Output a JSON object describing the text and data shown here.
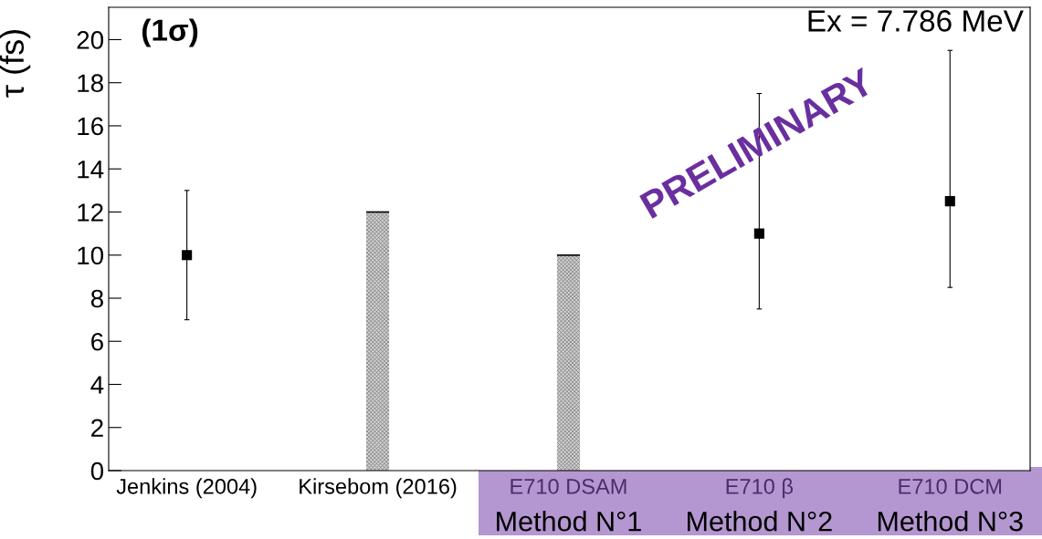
{
  "chart_data": {
    "type": "scatter",
    "categories": [
      "Jenkins (2004)",
      "Kirsebom (2016)",
      "E710 DSAM",
      "E710 β",
      "E710 DCM"
    ],
    "ylabel": "τ (fs)",
    "series": [
      {
        "color": "#000000",
        "values": [
          10,
          null,
          null,
          11,
          12.5
        ],
        "errors": [
          [
            7,
            13
          ],
          null,
          null,
          [
            7.5,
            17.5
          ],
          [
            8.5,
            19.5
          ]
        ]
      },
      {
        "type": "bar",
        "color": "#808080",
        "values": [
          null,
          12,
          10,
          null,
          null
        ]
      }
    ],
    "ylim": [
      0,
      21.5
    ],
    "yticks": [
      0,
      2,
      4,
      6,
      8,
      10,
      12,
      14,
      16,
      18,
      20
    ],
    "marker": "square",
    "grid": false,
    "legend": false,
    "annotations": [
      "(1σ)",
      "Ex = 7.786 MeV",
      "PRELIMINARY",
      "Method N°1",
      "Method N°2",
      "Method N°3"
    ]
  }
}
